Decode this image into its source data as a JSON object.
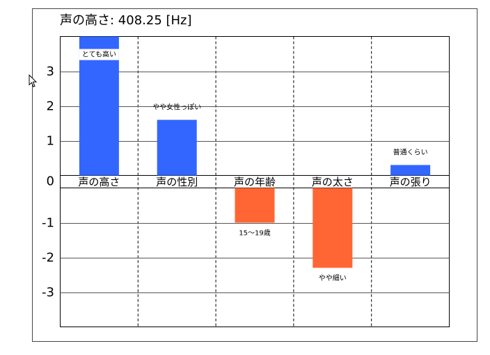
{
  "chart_data": {
    "type": "bar",
    "title": "声の高さ: 408.25 [Hz]",
    "categories": [
      "声の高さ",
      "声の性別",
      "声の年齢",
      "声の太さ",
      "声の張り"
    ],
    "values": [
      4,
      1.6,
      -1.0,
      -2.3,
      0.3
    ],
    "annotations": [
      "とても高い",
      "やや女性っぽい",
      "15〜19歳",
      "やや細い",
      "普通くらい"
    ],
    "positive_color": "#3366ff",
    "negative_color": "#ff6633",
    "ylim": [
      -4,
      4
    ],
    "yticks": [
      -3,
      -2,
      -1,
      0,
      1,
      2,
      3
    ],
    "grid": true
  }
}
